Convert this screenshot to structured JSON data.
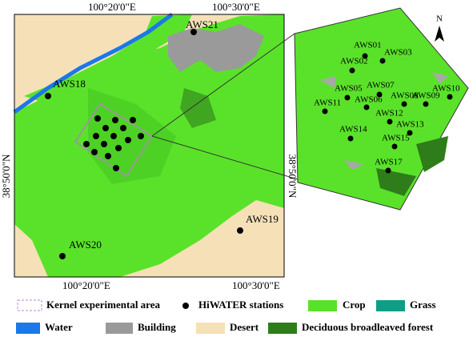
{
  "map": {
    "coordinates": {
      "top_left": "100°20'0\"E",
      "top_right": "100°30'0\"E",
      "bottom_left": "100°20'0\"E",
      "bottom_right": "100°30'0\"E",
      "left": "38°50'0\"N",
      "right": "38°50'0\"N"
    },
    "stations": [
      "AWS21",
      "AWS18",
      "AWS19",
      "AWS20"
    ],
    "inset_stations": [
      "AWS01",
      "AWS02",
      "AWS03",
      "AWS05",
      "AWS06",
      "AWS07",
      "AWS08",
      "AWS09",
      "AWS10",
      "AWS11",
      "AWS12",
      "AWS13",
      "AWS14",
      "AWS15",
      "AWS17"
    ],
    "north": "N"
  },
  "legend": [
    "Kernel experimental area",
    "HiWATER stations",
    "Crop",
    "Grass",
    "Water",
    "Building",
    "Desert",
    "Deciduous broadleaved forest"
  ]
}
